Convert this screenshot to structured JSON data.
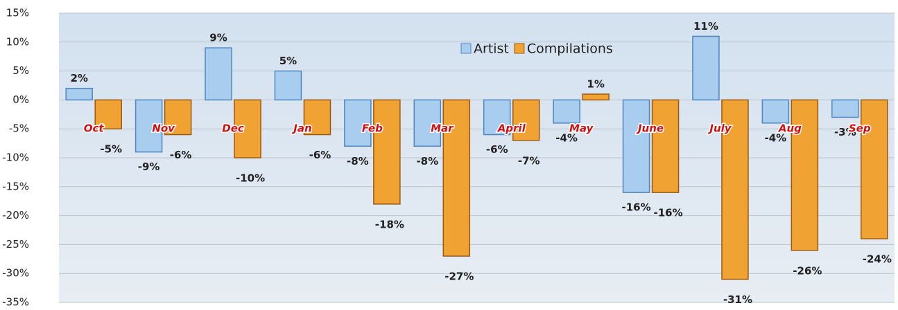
{
  "chart_data": {
    "type": "bar",
    "categories": [
      "Oct",
      "Nov",
      "Dec",
      "Jan",
      "Feb",
      "Mar",
      "April",
      "May",
      "June",
      "July",
      "Aug",
      "Sep"
    ],
    "series": [
      {
        "name": "Artist",
        "color": "#a8cdee",
        "values": [
          2,
          -9,
          9,
          5,
          -8,
          -8,
          -6,
          -4,
          -16,
          11,
          -4,
          -3
        ],
        "value_labels": [
          "2%",
          "-9%",
          "9%",
          "5%",
          "-8%",
          "-8%",
          "-6%",
          "-4%",
          "-16%",
          "11%",
          "-4%",
          "-3%"
        ]
      },
      {
        "name": "Compilations",
        "color": "#f0a232",
        "values": [
          -5,
          -6,
          -10,
          -6,
          -18,
          -27,
          -7,
          1,
          -16,
          -31,
          -26,
          -24
        ],
        "value_labels": [
          "-5%",
          "-6%",
          "-10%",
          "-6%",
          "-18%",
          "-27%",
          "-7%",
          "1%",
          "-16%",
          "-31%",
          "-26%",
          "-24%"
        ]
      }
    ],
    "ylim": [
      -35,
      15
    ],
    "yticks": [
      {
        "value": -35,
        "label": "-35%"
      },
      {
        "value": -30,
        "label": "-30%"
      },
      {
        "value": -25,
        "label": "-25%"
      },
      {
        "value": -20,
        "label": "-20%"
      },
      {
        "value": -15,
        "label": "-15%"
      },
      {
        "value": -10,
        "label": "-10%"
      },
      {
        "value": -5,
        "label": "-5%"
      },
      {
        "value": 0,
        "label": "0%"
      },
      {
        "value": 5,
        "label": "5%"
      },
      {
        "value": 10,
        "label": "10%"
      },
      {
        "value": 15,
        "label": "15%"
      }
    ],
    "grid": true,
    "legend": "top"
  }
}
